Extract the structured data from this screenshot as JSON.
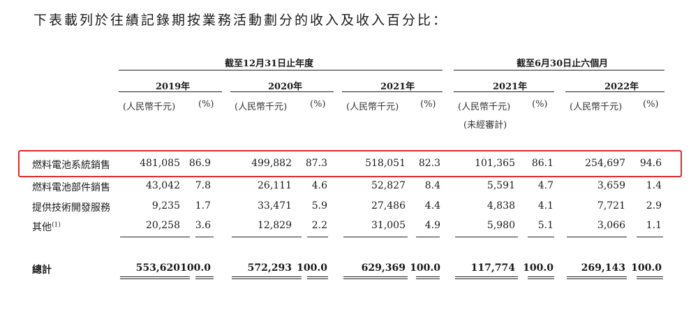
{
  "heading": "下表載列於往績記錄期按業務活動劃分的收入及收入百分比：",
  "groups": {
    "annual": "截至12月31日止年度",
    "six_month": "截至6月30日止六個月"
  },
  "years": [
    "2019年",
    "2020年",
    "2021年",
    "2021年",
    "2022年"
  ],
  "unit_rmb": "(人民幣千元)",
  "unit_pct": "(%)",
  "unaudited": "(未經審計)",
  "rows": [
    {
      "label": "燃料電池系統銷售",
      "sup": "",
      "values": [
        "481,085",
        "86.9",
        "499,882",
        "87.3",
        "518,051",
        "82.3",
        "101,365",
        "86.1",
        "254,697",
        "94.6"
      ]
    },
    {
      "label": "燃料電池部件銷售",
      "sup": "",
      "values": [
        "43,042",
        "7.8",
        "26,111",
        "4.6",
        "52,827",
        "8.4",
        "5,591",
        "4.7",
        "3,659",
        "1.4"
      ]
    },
    {
      "label": "提供技術開發服務",
      "sup": "",
      "values": [
        "9,235",
        "1.7",
        "33,471",
        "5.9",
        "27,486",
        "4.4",
        "4,838",
        "4.1",
        "7,721",
        "2.9"
      ]
    },
    {
      "label": "其他",
      "sup": "(1)",
      "values": [
        "20,258",
        "3.6",
        "12,829",
        "2.2",
        "31,005",
        "4.9",
        "5,980",
        "5.1",
        "3,066",
        "1.1"
      ]
    }
  ],
  "total": {
    "label": "總計",
    "values": [
      "553,620",
      "100.0",
      "572,293",
      "100.0",
      "629,369",
      "100.0",
      "117,774",
      "100.0",
      "269,143",
      "100.0"
    ]
  },
  "colors": {
    "highlight": "#e0282b"
  }
}
